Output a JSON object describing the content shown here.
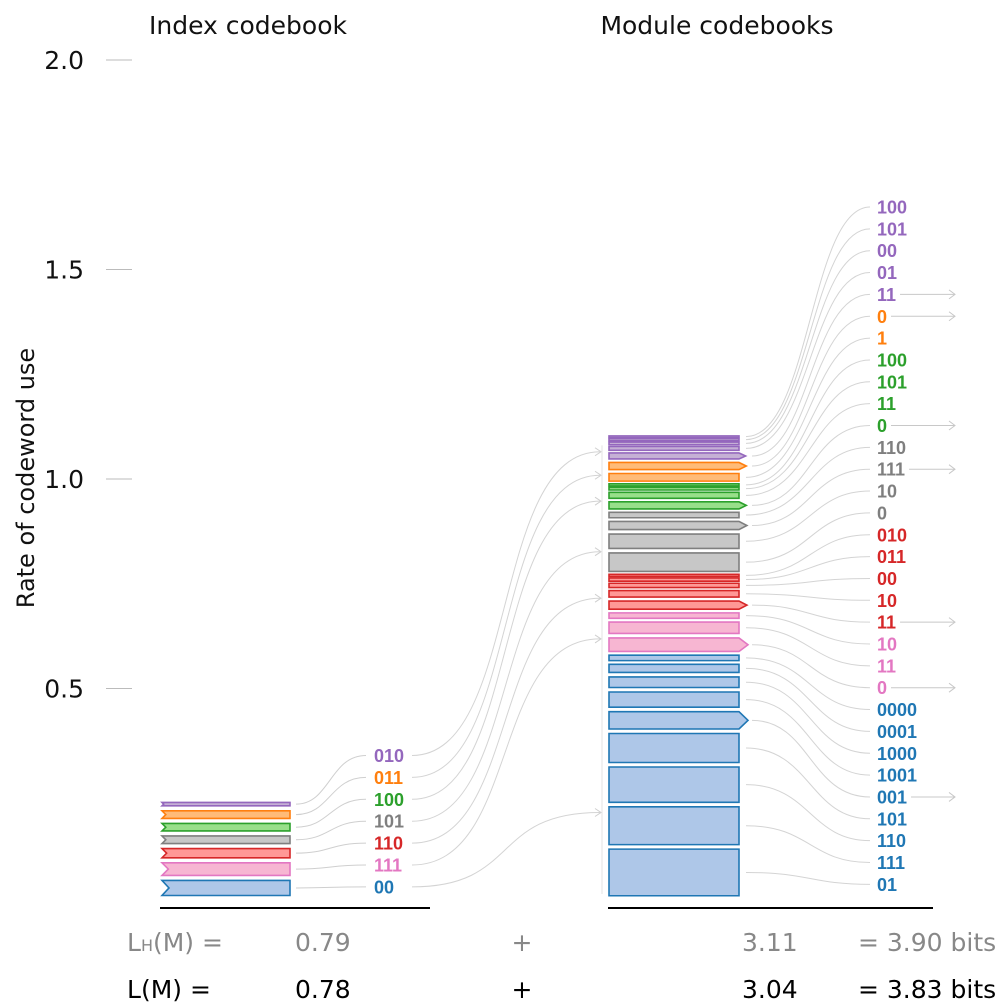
{
  "headers": {
    "index": "Index codebook",
    "module": "Module codebooks"
  },
  "y_axis": {
    "label": "Rate of codeword use",
    "ticks": [
      "2.0",
      "1.5",
      "1.0",
      "0.5"
    ],
    "tick_values": [
      2.0,
      1.5,
      1.0,
      0.5
    ]
  },
  "colors": {
    "blue": "#1f77b4",
    "pink": "#e377c2",
    "red": "#d62728",
    "gray": "#7f7f7f",
    "green": "#2ca02c",
    "orange": "#ff7f0e",
    "purple": "#9467bd"
  },
  "index_codebook": [
    {
      "module": "blue",
      "code": "00",
      "rate": 0.048
    },
    {
      "module": "pink",
      "code": "111",
      "rate": 0.042
    },
    {
      "module": "red",
      "code": "110",
      "rate": 0.034
    },
    {
      "module": "gray",
      "code": "101",
      "rate": 0.03
    },
    {
      "module": "green",
      "code": "100",
      "rate": 0.03
    },
    {
      "module": "orange",
      "code": "011",
      "rate": 0.03
    },
    {
      "module": "purple",
      "code": "010",
      "rate": 0.02
    }
  ],
  "module_codebooks": [
    {
      "module": "blue",
      "codewords": [
        {
          "code": "01",
          "rate": 0.122,
          "exit": false
        },
        {
          "code": "111",
          "rate": 0.101,
          "exit": false
        },
        {
          "code": "110",
          "rate": 0.095,
          "exit": false
        },
        {
          "code": "101",
          "rate": 0.08,
          "exit": false
        },
        {
          "code": "001",
          "rate": 0.052,
          "exit": true
        },
        {
          "code": "1001",
          "rate": 0.047,
          "exit": false
        },
        {
          "code": "1000",
          "rate": 0.036,
          "exit": false
        },
        {
          "code": "0001",
          "rate": 0.03,
          "exit": false
        },
        {
          "code": "0000",
          "rate": 0.02,
          "exit": false
        }
      ]
    },
    {
      "module": "pink",
      "codewords": [
        {
          "code": "0",
          "rate": 0.043,
          "exit": true
        },
        {
          "code": "11",
          "rate": 0.038,
          "exit": false
        },
        {
          "code": "10",
          "rate": 0.02,
          "exit": false
        }
      ]
    },
    {
      "module": "red",
      "codewords": [
        {
          "code": "11",
          "rate": 0.03,
          "exit": true
        },
        {
          "code": "10",
          "rate": 0.024,
          "exit": false
        },
        {
          "code": "00",
          "rate": 0.016,
          "exit": false
        },
        {
          "code": "011",
          "rate": 0.012,
          "exit": false
        },
        {
          "code": "010",
          "rate": 0.008,
          "exit": false
        }
      ]
    },
    {
      "module": "gray",
      "codewords": [
        {
          "code": "0",
          "rate": 0.055,
          "exit": false
        },
        {
          "code": "10",
          "rate": 0.045,
          "exit": false
        },
        {
          "code": "111",
          "rate": 0.03,
          "exit": true
        },
        {
          "code": "110",
          "rate": 0.02,
          "exit": false
        }
      ]
    },
    {
      "module": "green",
      "codewords": [
        {
          "code": "0",
          "rate": 0.026,
          "exit": true
        },
        {
          "code": "11",
          "rate": 0.022,
          "exit": false
        },
        {
          "code": "101",
          "rate": 0.01,
          "exit": false
        },
        {
          "code": "100",
          "rate": 0.008,
          "exit": false
        }
      ]
    },
    {
      "module": "orange",
      "codewords": [
        {
          "code": "1",
          "rate": 0.028,
          "exit": false
        },
        {
          "code": "0",
          "rate": 0.026,
          "exit": true
        }
      ]
    },
    {
      "module": "purple",
      "codewords": [
        {
          "code": "11",
          "rate": 0.022,
          "exit": true
        },
        {
          "code": "01",
          "rate": 0.014,
          "exit": false
        },
        {
          "code": "00",
          "rate": 0.01,
          "exit": false
        },
        {
          "code": "101",
          "rate": 0.008,
          "exit": false
        },
        {
          "code": "100",
          "rate": 0.006,
          "exit": false
        }
      ]
    }
  ],
  "formulas": [
    {
      "lhs_main": "L",
      "lhs_sub": "H",
      "lhs_rest": "(M) =",
      "index": "0.79",
      "plus": "+",
      "module": "3.11",
      "total": "= 3.90 bits",
      "style": "gray"
    },
    {
      "lhs_main": "L",
      "lhs_sub": "",
      "lhs_rest": "(M) =",
      "index": "0.78",
      "plus": "+",
      "module": "3.04",
      "total": "= 3.83 bits",
      "style": "black"
    }
  ]
}
